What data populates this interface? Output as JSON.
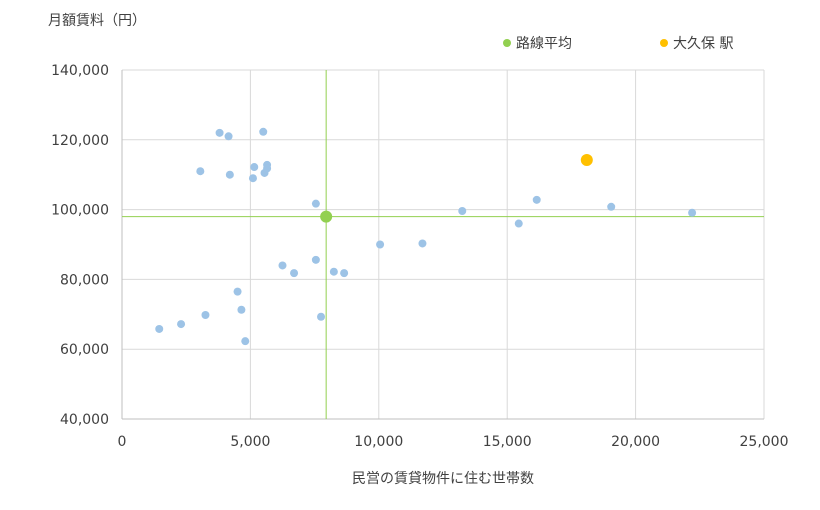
{
  "chart_data": {
    "type": "scatter",
    "xlabel": "民営の賃貸物件に住む世帯数",
    "ylabel": "月額賃料（円）",
    "xlim": [
      0,
      25000
    ],
    "ylim": [
      40000,
      140000
    ],
    "x_ticks": [
      0,
      5000,
      10000,
      15000,
      20000,
      25000
    ],
    "y_ticks": [
      40000,
      60000,
      80000,
      100000,
      120000,
      140000
    ],
    "x_tick_labels": [
      "0",
      "5,000",
      "10,000",
      "15,000",
      "20,000",
      "25,000"
    ],
    "y_tick_labels": [
      "40,000",
      "60,000",
      "80,000",
      "100,000",
      "120,000",
      "140,000"
    ],
    "grid": {
      "x": true,
      "y": true
    },
    "legend": {
      "placement": "top-right",
      "entries": [
        {
          "label": "路線平均",
          "color": "#92d050"
        },
        {
          "label": "大久保 駅",
          "color": "#ffc000"
        }
      ]
    },
    "series": [
      {
        "color": "#9dc3e6",
        "points": [
          [
            1450,
            65800
          ],
          [
            2300,
            67200
          ],
          [
            3250,
            69800
          ],
          [
            3050,
            111000
          ],
          [
            3800,
            122000
          ],
          [
            4150,
            121000
          ],
          [
            4200,
            110000
          ],
          [
            4500,
            76500
          ],
          [
            4650,
            71300
          ],
          [
            4800,
            62300
          ],
          [
            5100,
            109000
          ],
          [
            5150,
            112200
          ],
          [
            5500,
            122300
          ],
          [
            5550,
            110500
          ],
          [
            5650,
            112800
          ],
          [
            5650,
            111800
          ],
          [
            6250,
            84000
          ],
          [
            6700,
            81800
          ],
          [
            7550,
            101700
          ],
          [
            7550,
            85600
          ],
          [
            7750,
            69300
          ],
          [
            8250,
            82200
          ],
          [
            8650,
            81800
          ],
          [
            10050,
            90000
          ],
          [
            11700,
            90300
          ],
          [
            13250,
            99600
          ],
          [
            15450,
            96000
          ],
          [
            16150,
            102800
          ],
          [
            19050,
            100800
          ],
          [
            22200,
            99100
          ]
        ]
      },
      {
        "name": "路線平均",
        "color": "#92d050",
        "points": [
          [
            7950,
            98000
          ]
        ]
      },
      {
        "name": "大久保 駅",
        "color": "#ffc000",
        "points": [
          [
            18100,
            114200
          ]
        ]
      }
    ],
    "reference_lines": {
      "x": 7950,
      "y": 98000,
      "color": "#92d050"
    }
  }
}
